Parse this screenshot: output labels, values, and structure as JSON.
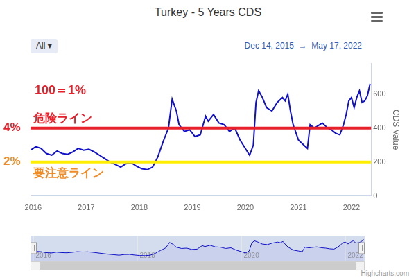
{
  "chart_data": {
    "type": "line",
    "title": "Turkey - 5 Years CDS",
    "range_button": "All ▾",
    "date_range_text": "Dec 14, 2015  →  May 17, 2022",
    "y_label": "CDS Value",
    "credit": "Highcharts.com",
    "color": "#1010c8",
    "grid": true,
    "xlim": [
      2015.95,
      2022.37
    ],
    "xticks": [
      2016,
      2017,
      2018,
      2019,
      2020,
      2021,
      2022
    ],
    "ylim": [
      0,
      780
    ],
    "yticks": [
      0,
      200,
      400,
      600
    ],
    "navigator_xticks": [
      2016,
      2018,
      2020,
      2022
    ],
    "x": [
      2015.95,
      2016.05,
      2016.15,
      2016.25,
      2016.35,
      2016.45,
      2016.55,
      2016.65,
      2016.75,
      2016.85,
      2016.95,
      2017.05,
      2017.15,
      2017.25,
      2017.35,
      2017.45,
      2017.55,
      2017.65,
      2017.75,
      2017.85,
      2017.95,
      2018.05,
      2018.15,
      2018.25,
      2018.35,
      2018.45,
      2018.55,
      2018.62,
      2018.7,
      2018.75,
      2018.85,
      2018.95,
      2019.05,
      2019.15,
      2019.25,
      2019.3,
      2019.4,
      2019.5,
      2019.6,
      2019.7,
      2019.8,
      2019.9,
      2020.0,
      2020.08,
      2020.15,
      2020.2,
      2020.25,
      2020.32,
      2020.4,
      2020.5,
      2020.6,
      2020.7,
      2020.75,
      2020.8,
      2020.85,
      2020.9,
      2021.0,
      2021.1,
      2021.17,
      2021.22,
      2021.3,
      2021.35,
      2021.45,
      2021.55,
      2021.62,
      2021.7,
      2021.78,
      2021.85,
      2021.9,
      2021.95,
      2022.0,
      2022.05,
      2022.1,
      2022.15,
      2022.2,
      2022.25,
      2022.3,
      2022.35
    ],
    "values": [
      270,
      290,
      280,
      250,
      240,
      265,
      250,
      245,
      260,
      280,
      270,
      275,
      260,
      240,
      220,
      200,
      185,
      170,
      190,
      195,
      175,
      160,
      155,
      170,
      230,
      320,
      400,
      570,
      500,
      420,
      380,
      390,
      350,
      360,
      470,
      440,
      480,
      430,
      420,
      380,
      400,
      330,
      280,
      240,
      300,
      550,
      620,
      580,
      520,
      500,
      550,
      580,
      560,
      600,
      500,
      420,
      330,
      300,
      280,
      420,
      400,
      410,
      430,
      400,
      390,
      370,
      360,
      420,
      480,
      560,
      580,
      520,
      580,
      620,
      550,
      560,
      590,
      660
    ],
    "reference_lines": [
      {
        "value": 400,
        "label": "危険ライン",
        "side_label": "4%",
        "color": "#e8202a",
        "text_color": "#e8202a"
      },
      {
        "value": 200,
        "label": "要注意ライン",
        "side_label": "2%",
        "color": "#ffee00",
        "text_color": "#f08c28"
      }
    ],
    "annotations": [
      {
        "text": "100＝1%",
        "color": "#e8202a"
      }
    ]
  }
}
